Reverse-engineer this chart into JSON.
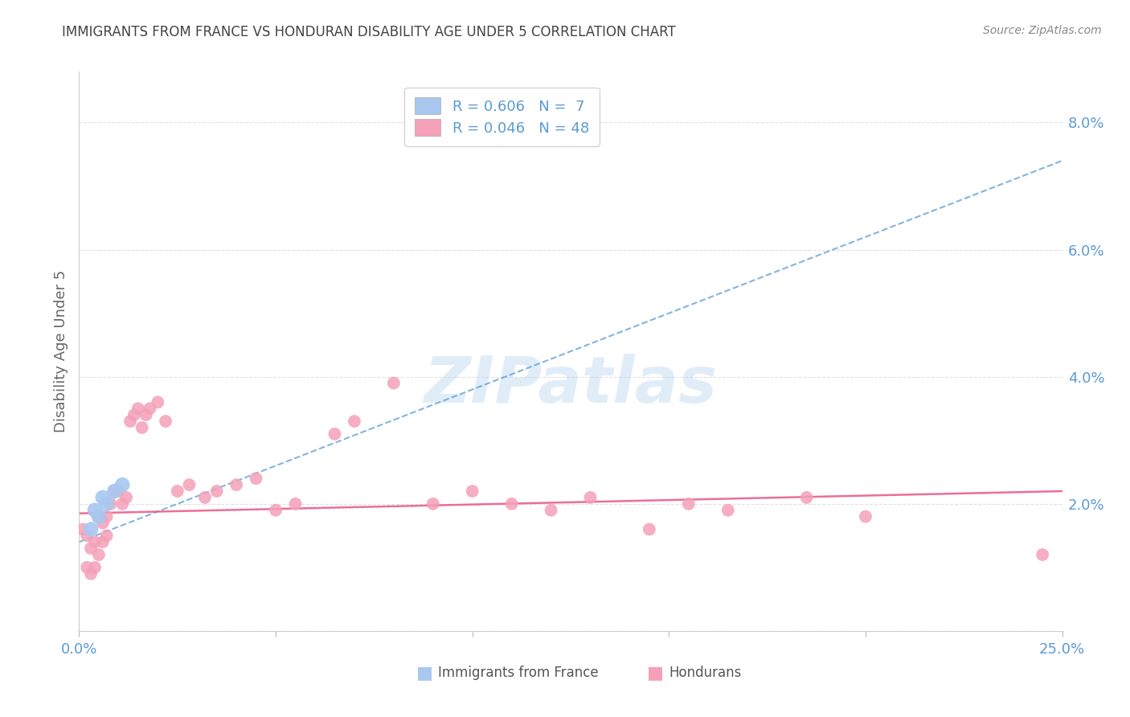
{
  "title": "IMMIGRANTS FROM FRANCE VS HONDURAN DISABILITY AGE UNDER 5 CORRELATION CHART",
  "source": "Source: ZipAtlas.com",
  "ylabel": "Disability Age Under 5",
  "xlim": [
    0.0,
    0.25
  ],
  "ylim": [
    0.0,
    0.088
  ],
  "xtick_positions": [
    0.0,
    0.05,
    0.1,
    0.15,
    0.2,
    0.25
  ],
  "xtick_labels": [
    "0.0%",
    "",
    "",
    "",
    "",
    "25.0%"
  ],
  "ytick_positions": [
    0.0,
    0.02,
    0.04,
    0.06,
    0.08
  ],
  "ytick_labels": [
    "",
    "2.0%",
    "4.0%",
    "6.0%",
    "8.0%"
  ],
  "legend_france_r": "R = 0.606",
  "legend_france_n": "N =  7",
  "legend_honduran_r": "R = 0.046",
  "legend_honduran_n": "N = 48",
  "france_color": "#a8c8f0",
  "honduran_color": "#f4a0b8",
  "france_line_color": "#5b9bd5",
  "honduran_line_color": "#e8608a",
  "tick_color": "#5b9bd5",
  "title_color": "#444444",
  "source_color": "#888888",
  "ylabel_color": "#666666",
  "grid_color": "#e0e0e0",
  "background_color": "#ffffff",
  "watermark": "ZIPatlas",
  "france_scatter_x": [
    0.003,
    0.004,
    0.005,
    0.006,
    0.007,
    0.009,
    0.011
  ],
  "france_scatter_y": [
    0.016,
    0.019,
    0.018,
    0.021,
    0.02,
    0.022,
    0.023
  ],
  "honduran_scatter_x": [
    0.001,
    0.002,
    0.002,
    0.003,
    0.003,
    0.004,
    0.004,
    0.005,
    0.005,
    0.006,
    0.006,
    0.007,
    0.007,
    0.008,
    0.009,
    0.01,
    0.011,
    0.012,
    0.013,
    0.014,
    0.015,
    0.016,
    0.017,
    0.018,
    0.02,
    0.022,
    0.025,
    0.028,
    0.032,
    0.035,
    0.04,
    0.045,
    0.05,
    0.055,
    0.065,
    0.07,
    0.08,
    0.09,
    0.1,
    0.11,
    0.12,
    0.13,
    0.145,
    0.155,
    0.165,
    0.185,
    0.2,
    0.245
  ],
  "honduran_scatter_y": [
    0.016,
    0.015,
    0.01,
    0.013,
    0.009,
    0.014,
    0.01,
    0.018,
    0.012,
    0.017,
    0.014,
    0.018,
    0.015,
    0.02,
    0.022,
    0.022,
    0.02,
    0.021,
    0.033,
    0.034,
    0.035,
    0.032,
    0.034,
    0.035,
    0.036,
    0.033,
    0.022,
    0.023,
    0.021,
    0.022,
    0.023,
    0.024,
    0.019,
    0.02,
    0.031,
    0.033,
    0.039,
    0.02,
    0.022,
    0.02,
    0.019,
    0.021,
    0.016,
    0.02,
    0.019,
    0.021,
    0.018,
    0.012
  ],
  "france_trend_x": [
    0.0,
    0.25
  ],
  "france_trend_y": [
    0.014,
    0.074
  ],
  "honduran_trend_x": [
    0.0,
    0.25
  ],
  "honduran_trend_y": [
    0.0185,
    0.022
  ]
}
